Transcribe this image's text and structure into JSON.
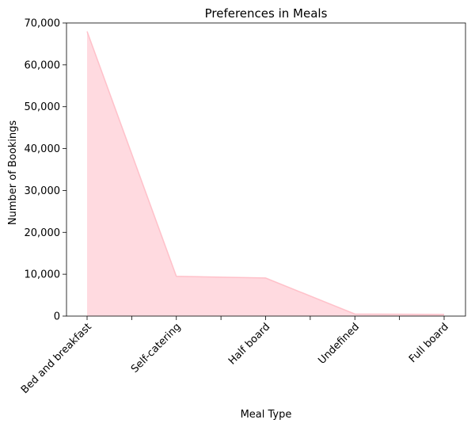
{
  "chart_data": {
    "type": "area",
    "title": "Preferences in Meals",
    "xlabel": "Meal Type",
    "ylabel": "Number of Bookings",
    "categories": [
      "Bed and breakfast",
      "Self-catering",
      "Half board",
      "Undefined",
      "Full board"
    ],
    "series": [
      {
        "values": [
          68000,
          9500,
          9100,
          500,
          400
        ]
      }
    ],
    "ylim": [
      0,
      70000
    ],
    "yticks": [
      0,
      10000,
      20000,
      30000,
      40000,
      50000,
      60000,
      70000
    ],
    "ytick_labels": [
      "0",
      "10,000",
      "20,000",
      "30,000",
      "40,000",
      "50,000",
      "60,000",
      "70,000"
    ],
    "grid": false,
    "colors": {
      "fill": "#ffb6c1",
      "line": "#ffb6c1"
    }
  }
}
